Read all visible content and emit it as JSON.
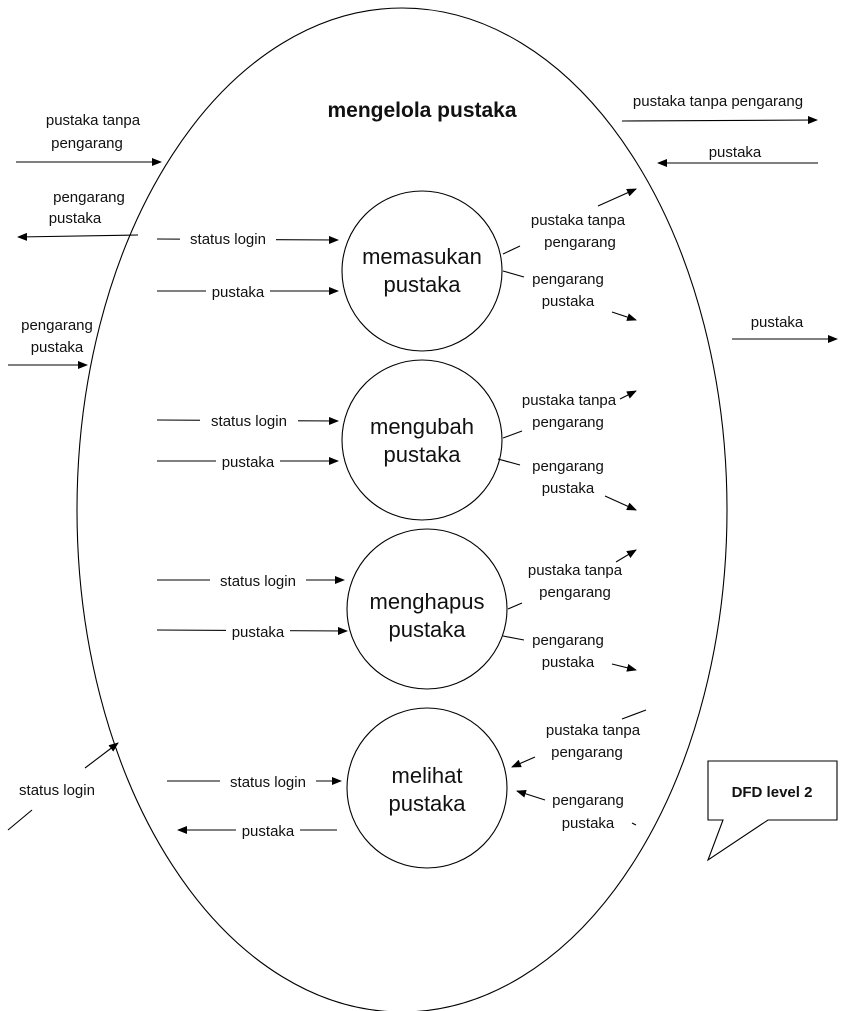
{
  "title": "mengelola pustaka",
  "processes": [
    {
      "line1": "memasukan",
      "line2": "pustaka"
    },
    {
      "line1": "mengubah",
      "line2": "pustaka"
    },
    {
      "line1": "menghapus",
      "line2": "pustaka"
    },
    {
      "line1": "melihat",
      "line2": "pustaka"
    }
  ],
  "labels": {
    "status_login": "status login",
    "pustaka": "pustaka",
    "pustaka_tanpa": "pustaka tanpa",
    "pengarang": "pengarang",
    "pustaka_tanpa_pengarang": "pustaka tanpa pengarang"
  },
  "note": "DFD level 2"
}
